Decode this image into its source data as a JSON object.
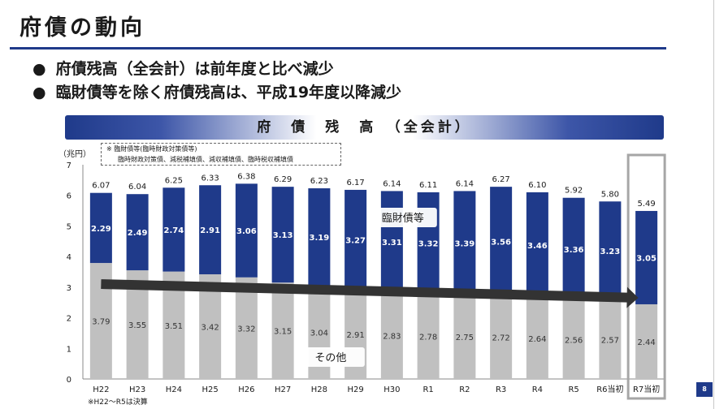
{
  "title": "府債の動向",
  "bullets": [
    "府債残高（全会計）は前年度と比べ減少",
    "臨財債等を除く府債残高は、平成19年度以降減少"
  ],
  "bullet_mark": "●",
  "page_number": "8",
  "colors": {
    "accent": "#1f3a8a",
    "series_top": "#1f3a8a",
    "series_bottom": "#c0c0c0",
    "arrow": "#333333"
  },
  "chart_data": {
    "type": "bar",
    "stacked": true,
    "title": "府　債　残　高　（全会計）",
    "ylabel": "（兆円）",
    "ylim": [
      0,
      7
    ],
    "yticks": [
      0,
      1,
      2,
      3,
      4,
      5,
      6,
      7
    ],
    "grid": false,
    "categories": [
      "H22",
      "H23",
      "H24",
      "H25",
      "H26",
      "H27",
      "H28",
      "H29",
      "H30",
      "R1",
      "R2",
      "R3",
      "R4",
      "R5",
      "R6当初",
      "R7当初"
    ],
    "totals": [
      "6.07",
      "6.04",
      "6.25",
      "6.33",
      "6.38",
      "6.29",
      "6.23",
      "6.17",
      "6.14",
      "6.11",
      "6.14",
      "6.27",
      "6.10",
      "5.92",
      "5.80",
      "5.49"
    ],
    "series": [
      {
        "name": "その他",
        "values": [
          3.79,
          3.55,
          3.51,
          3.42,
          3.32,
          3.15,
          3.04,
          2.91,
          2.83,
          2.78,
          2.75,
          2.72,
          2.64,
          2.56,
          2.57,
          2.44
        ]
      },
      {
        "name": "臨財債等",
        "values": [
          2.29,
          2.49,
          2.74,
          2.91,
          3.06,
          3.13,
          3.19,
          3.27,
          3.31,
          3.32,
          3.39,
          3.56,
          3.46,
          3.36,
          3.23,
          3.05
        ]
      }
    ],
    "highlighted_category": "R7当初",
    "note": {
      "title": "※ 臨財債等(臨時財政対策債等)",
      "detail": "臨時財政対策債、減税補填債、減収補填債、臨時税収補填債"
    },
    "footnote": "※H22～R5は決算"
  }
}
